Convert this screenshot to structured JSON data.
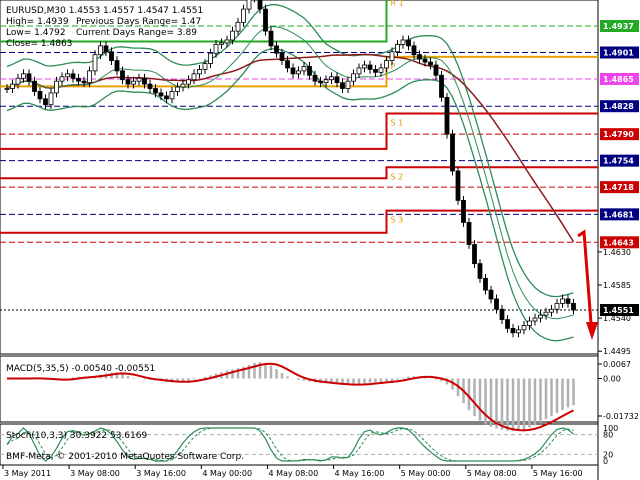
{
  "header": {
    "symbol_line": "EURUSD,M30  1.4553 1.4557 1.4547 1.4551",
    "high_line": "High= 1.4939",
    "low_line": "Low= 1.4792",
    "close_line": "Close= 1.4863",
    "prev_range_line": "Previous Days Range= 1.47",
    "curr_range_line": "Current Days Range= 3.89"
  },
  "indicators": {
    "macd_title": "MACD(5,35,5) -0.00540 -0.00551",
    "stoch_title": "Stoch(10,3,3) 30.3922 53.6169",
    "watermark": "BMF-Meta, © 2001-2010 MetaQuotes Software Corp."
  },
  "level_labels": [
    "R 1",
    "P",
    "S 1",
    "S 2",
    "S 3"
  ],
  "chart_data": [
    {
      "type": "candlestick",
      "symbol": "EURUSD",
      "timeframe": "M30",
      "price_axis": [
        "1.4937",
        "1.4901",
        "1.4865",
        "1.4828",
        "1.4790",
        "1.4754",
        "1.4718",
        "1.4681",
        "1.4643",
        "1.4630",
        "1.4585",
        "1.4551",
        "1.4540",
        "1.4495"
      ],
      "price_tags": [
        {
          "price": 1.4937,
          "label": "1.4937",
          "color": "#22aa22"
        },
        {
          "price": 1.4901,
          "label": "1.4901",
          "color": "#000080"
        },
        {
          "price": 1.4865,
          "label": "1.4865",
          "color": "#ee44ee"
        },
        {
          "price": 1.4828,
          "label": "1.4828",
          "color": "#000080"
        },
        {
          "price": 1.479,
          "label": "1.4790",
          "color": "#cc0000"
        },
        {
          "price": 1.4754,
          "label": "1.4754",
          "color": "#000080"
        },
        {
          "price": 1.4718,
          "label": "1.4718",
          "color": "#cc0000"
        },
        {
          "price": 1.4681,
          "label": "1.4681",
          "color": "#000080"
        },
        {
          "price": 1.4643,
          "label": "1.4643",
          "color": "#cc0000"
        },
        {
          "price": 1.4551,
          "label": "1.4551",
          "color": "#000000"
        }
      ],
      "levels": [
        {
          "name": "R 1",
          "prev": 1.4916,
          "curr": 1.4981,
          "color": "#22aa22"
        },
        {
          "name": "P",
          "prev": 1.4855,
          "curr": 1.4895,
          "color": "#e8a000"
        },
        {
          "name": "S 1",
          "prev": 1.477,
          "curr": 1.4818,
          "color": "#cc0000"
        },
        {
          "name": "S 2",
          "prev": 1.473,
          "curr": 1.4745,
          "color": "#cc0000"
        },
        {
          "name": "S 3",
          "prev": 1.4656,
          "curr": 1.4686,
          "color": "#cc0000"
        }
      ],
      "close": [
        1.4852,
        1.4858,
        1.4866,
        1.4872,
        1.4862,
        1.4848,
        1.4838,
        1.483,
        1.4846,
        1.4862,
        1.4868,
        1.4872,
        1.4866,
        1.4862,
        1.486,
        1.4876,
        1.4898,
        1.491,
        1.4902,
        1.489,
        1.4876,
        1.4864,
        1.4858,
        1.4862,
        1.4866,
        1.4858,
        1.4852,
        1.4846,
        1.4842,
        1.4838,
        1.4848,
        1.4854,
        1.4858,
        1.4864,
        1.4872,
        1.4878,
        1.4886,
        1.49,
        1.4912,
        1.4914,
        1.4918,
        1.493,
        1.4942,
        1.496,
        1.4975,
        1.498,
        1.496,
        1.493,
        1.491,
        1.49,
        1.489,
        1.488,
        1.4872,
        1.4876,
        1.4882,
        1.487,
        1.4862,
        1.486,
        1.4864,
        1.4868,
        1.486,
        1.4852,
        1.4862,
        1.4872,
        1.488,
        1.4884,
        1.4878,
        1.4874,
        1.488,
        1.489,
        1.4902,
        1.4912,
        1.4918,
        1.491,
        1.4898,
        1.4892,
        1.4888,
        1.4884,
        1.487,
        1.484,
        1.479,
        1.474,
        1.47,
        1.467,
        1.464,
        1.4614,
        1.4594,
        1.4578,
        1.4566,
        1.4552,
        1.4538,
        1.4526,
        1.452,
        1.4524,
        1.453,
        1.4536,
        1.454,
        1.4544,
        1.4548,
        1.4552,
        1.456,
        1.4566,
        1.456,
        1.4551
      ],
      "macd_range": [
        "0.0067",
        "0.00",
        "-0.01732"
      ],
      "stoch_levels": [
        "100",
        "80",
        "20",
        "0"
      ],
      "time_labels": [
        "3 May 2011",
        "3 May 08:00",
        "3 May 16:00",
        "4 May 00:00",
        "4 May 08:00",
        "4 May 16:00",
        "5 May 00:00",
        "5 May 08:00",
        "5 May 16:00"
      ]
    }
  ]
}
